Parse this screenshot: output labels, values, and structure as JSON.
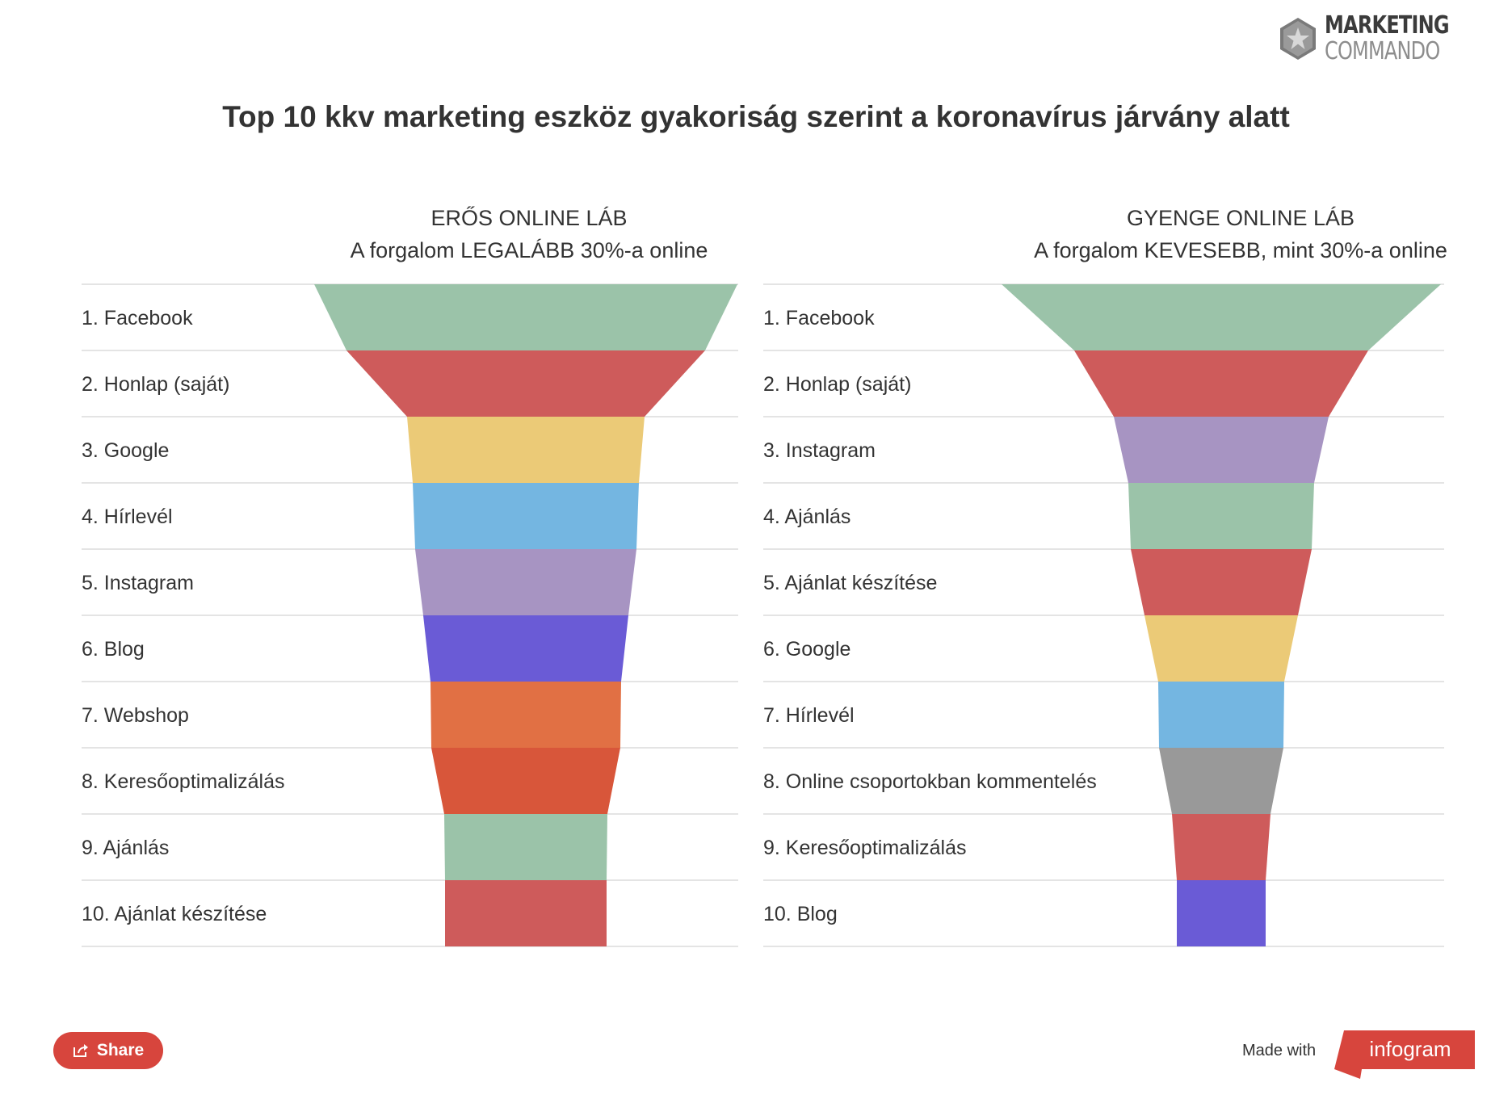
{
  "logo": {
    "line1": "MARKETING",
    "line2": "COMMANDO"
  },
  "title": "Top 10 kkv marketing eszköz gyakoriság szerint a koronavírus járvány alatt",
  "chart_data": [
    {
      "type": "funnel",
      "title_line1": "ERŐS ONLINE LÁB",
      "title_line2": "A forgalom LEGALÁBB 30%-a online",
      "categories": [
        "1. Facebook",
        "2. Honlap (saját)",
        "3. Google",
        "4. Hírlevél",
        "5. Instagram",
        "6. Blog",
        "7. Webshop",
        "8. Keresőoptimalizálás",
        "9. Ajánlás",
        "10. Ajánlat készítése"
      ],
      "colors": [
        "#9bc3a9",
        "#ce5b5b",
        "#ebca77",
        "#74b6e1",
        "#a794c2",
        "#6a5bd6",
        "#e17044",
        "#d8563a",
        "#9bc3a9",
        "#ce5b5b"
      ]
    },
    {
      "type": "funnel",
      "title_line1": "GYENGE ONLINE LÁB",
      "title_line2": "A forgalom KEVESEBB, mint 30%-a online",
      "categories": [
        "1. Facebook",
        "2. Honlap (saját)",
        "3. Instagram",
        "4. Ajánlás",
        "5. Ajánlat készítése",
        "6. Google",
        "7. Hírlevél",
        "8. Online csoportokban kommentelés",
        "9. Keresőoptimalizálás",
        "10. Blog"
      ],
      "colors": [
        "#9bc3a9",
        "#ce5b5b",
        "#a794c2",
        "#9bc3a9",
        "#ce5b5b",
        "#ebca77",
        "#74b6e1",
        "#999999",
        "#ce5b5b",
        "#6a5bd6"
      ]
    }
  ],
  "share": {
    "label": "Share"
  },
  "made_with": "Made with",
  "infogram": "infogram"
}
